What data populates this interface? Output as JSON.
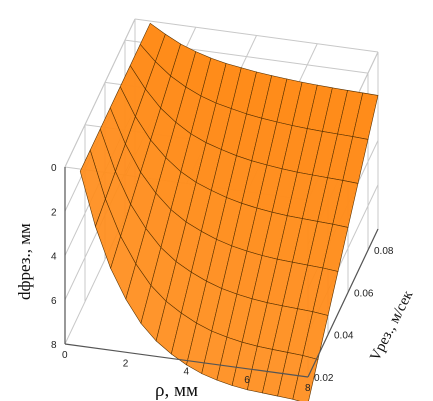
{
  "chart_data": {
    "type": "surface",
    "xlabel": "ρ, мм",
    "ylabel": "dфрез., мм",
    "zlabel": "Vрез., м/сек",
    "x_ticks": [
      "0",
      "2",
      "4",
      "6",
      "8"
    ],
    "y_ticks": [
      "0",
      "2",
      "4",
      "6",
      "8"
    ],
    "z_ticks": [
      "0.02",
      "0.04",
      "0.06",
      "0.08"
    ],
    "xlim": [
      0,
      8
    ],
    "ylim": [
      0,
      8
    ],
    "zlim": [
      0.02,
      0.09
    ],
    "grid": true,
    "colors": {
      "surface": "#FF8C1A",
      "mesh": "#5a3200",
      "grid": "#c8c8c8",
      "axis": "#555555"
    },
    "series": [
      {
        "velocity_values": [
          0.02,
          0.03,
          0.04,
          0.05,
          0.06,
          0.07,
          0.08,
          0.09
        ],
        "radius_values": [
          0.5,
          1.0,
          1.5,
          2.0,
          2.5,
          3.0,
          3.5,
          4.0,
          4.5,
          5.0,
          5.5,
          6.0,
          6.5,
          7.0,
          7.5,
          8.0
        ],
        "diameter_at_min_velocity": [
          0.1,
          2.5,
          4.3,
          5.6,
          6.6,
          7.3,
          7.8,
          8.2,
          8.5,
          8.7,
          8.85,
          8.95,
          9.0,
          9.05,
          9.1,
          9.2
        ],
        "diameter_at_max_velocity": [
          0.1,
          0.5,
          0.85,
          1.1,
          1.3,
          1.45,
          1.55,
          1.65,
          1.72,
          1.78,
          1.83,
          1.87,
          1.9,
          1.92,
          1.94,
          1.96
        ]
      }
    ]
  }
}
